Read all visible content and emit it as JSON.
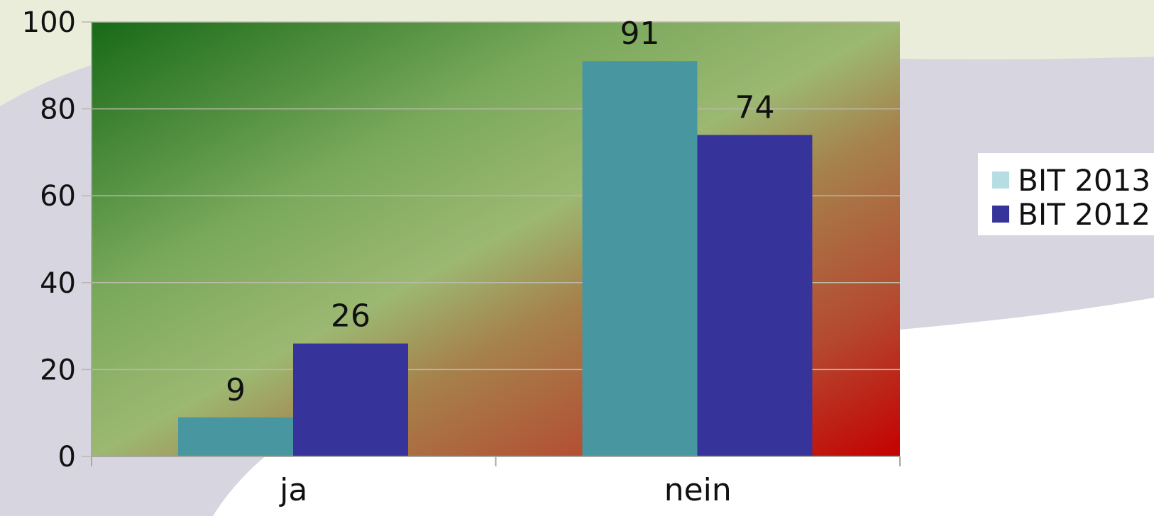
{
  "chart_data": {
    "type": "bar",
    "title": "",
    "xlabel": "",
    "ylabel": "",
    "categories": [
      "ja",
      "nein"
    ],
    "series": [
      {
        "name": "BIT 2013",
        "values": [
          9,
          91
        ],
        "color": "#4897a0",
        "legend_color": "#b6dde3"
      },
      {
        "name": "BIT 2012",
        "values": [
          26,
          74
        ],
        "color": "#36349a",
        "legend_color": "#36349a"
      }
    ],
    "ylim": [
      0,
      100
    ],
    "yticks": [
      0,
      20,
      40,
      60,
      80,
      100
    ],
    "grid": true,
    "legend": "right",
    "data_labels": true
  }
}
